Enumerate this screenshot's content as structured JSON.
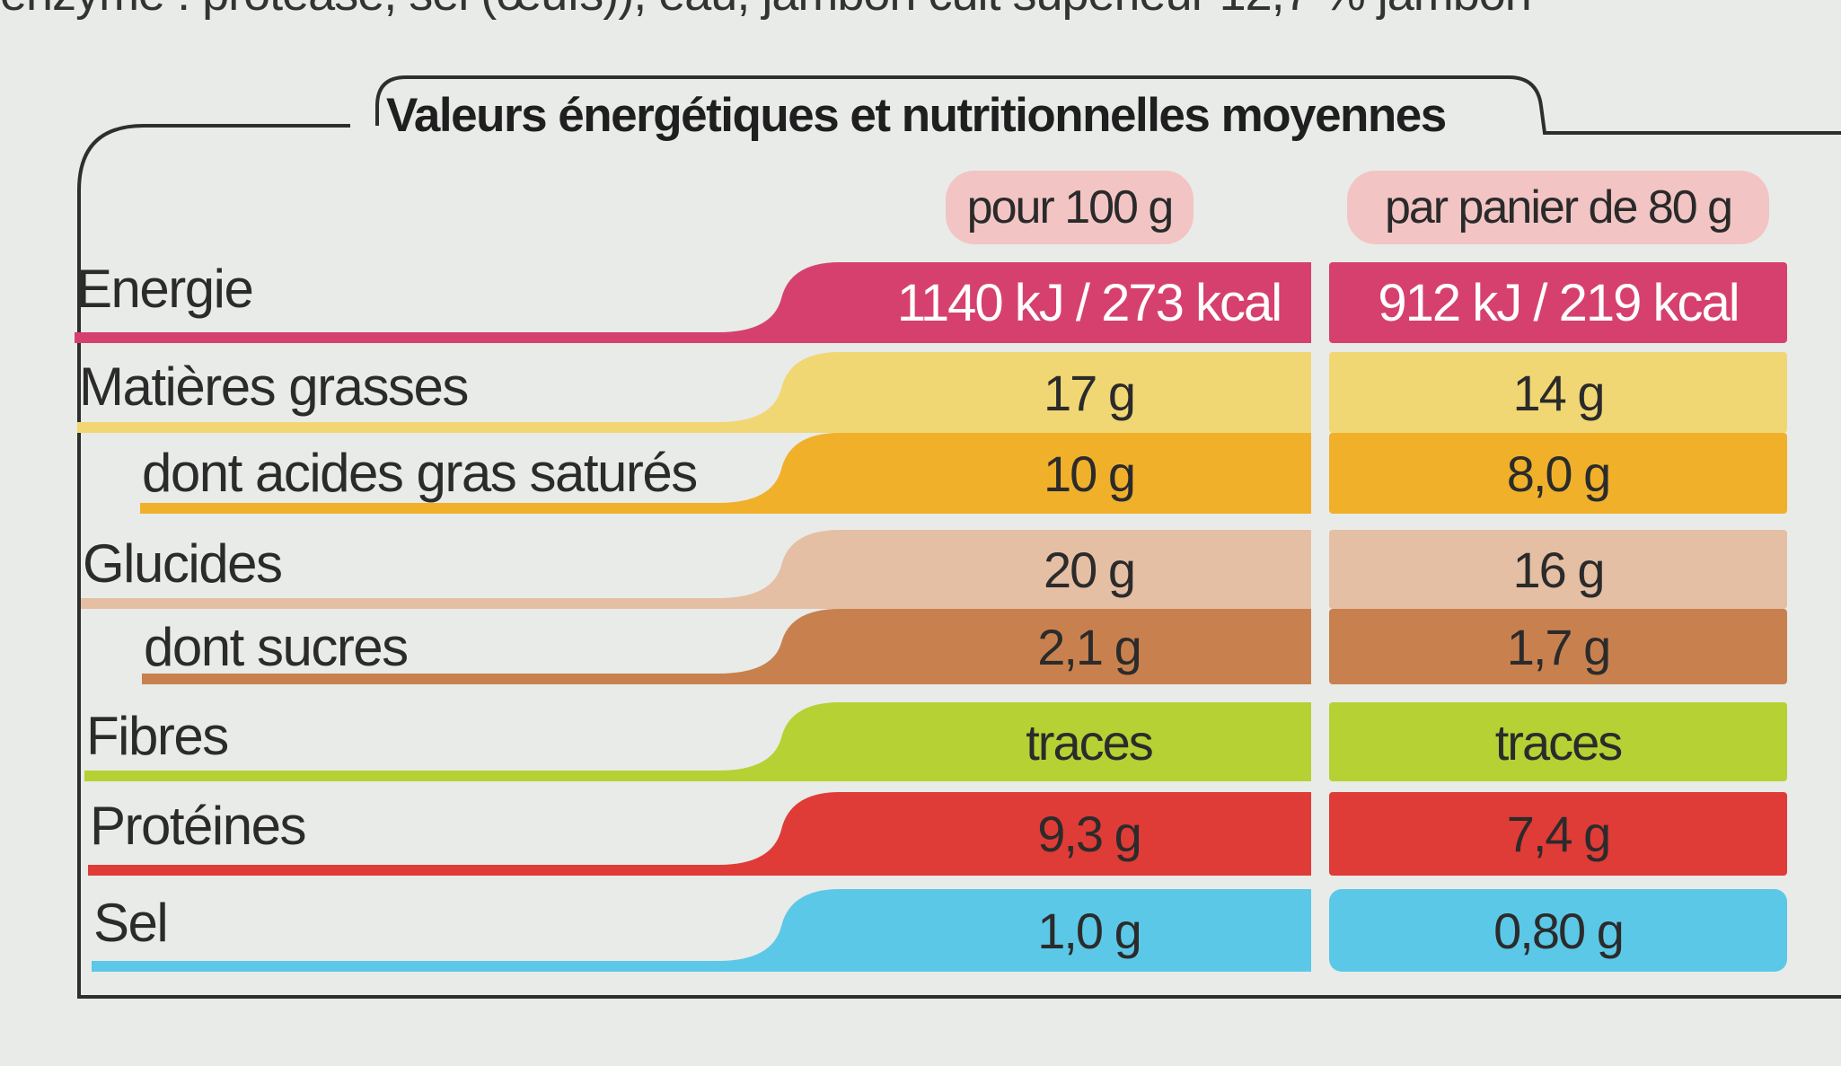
{
  "top_text": "enzyme : protéase, sel (œufs)), eau, jambon cuit supérieur 12,7 % jambon",
  "title": "Valeurs énergétiques et nutritionnelles moyennes",
  "columns": {
    "per100": "pour 100 g",
    "perServing": "par panier de 80 g"
  },
  "rows": [
    {
      "label": "Energie",
      "per100": "1140 kJ / 273 kcal",
      "perServing": "912 kJ / 219 kcal",
      "color": "#d6406f"
    },
    {
      "label": "Matières grasses",
      "per100": "17 g",
      "perServing": "14 g",
      "color": "#f1d774"
    },
    {
      "label": "dont acides gras saturés",
      "per100": "10 g",
      "perServing": "8,0 g",
      "color": "#f0b02a"
    },
    {
      "label": "Glucides",
      "per100": "20 g",
      "perServing": "16 g",
      "color": "#e5bfa4"
    },
    {
      "label": "dont sucres",
      "per100": "2,1 g",
      "perServing": "1,7 g",
      "color": "#c8814e"
    },
    {
      "label": "Fibres",
      "per100": "traces",
      "perServing": "traces",
      "color": "#b5d133"
    },
    {
      "label": "Protéines",
      "per100": "9,3 g",
      "perServing": "7,4 g",
      "color": "#df3b37"
    },
    {
      "label": "Sel",
      "per100": "1,0 g",
      "perServing": "0,80 g",
      "color": "#5cc8e8"
    }
  ]
}
